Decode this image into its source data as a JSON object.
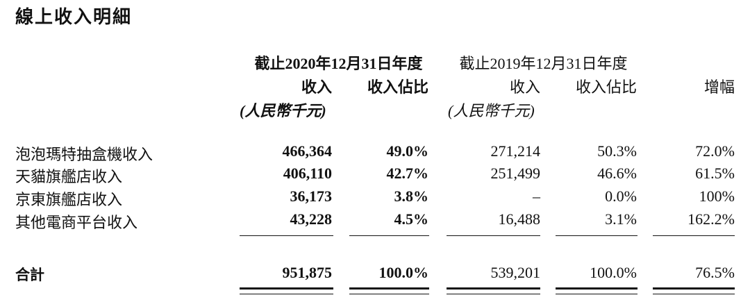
{
  "title": "線上收入明細",
  "periods": {
    "current": "截止2020年12月31日年度",
    "previous": "截止2019年12月31日年度"
  },
  "headers": {
    "revenue": "收入",
    "share": "收入佔比",
    "growth": "增幅",
    "unit": "(人民幣千元)"
  },
  "rows": [
    {
      "label": "泡泡瑪特抽盒機收入",
      "rev2020": "466,364",
      "share2020": "49.0%",
      "rev2019": "271,214",
      "share2019": "50.3%",
      "growth": "72.0%"
    },
    {
      "label": "天貓旗艦店收入",
      "rev2020": "406,110",
      "share2020": "42.7%",
      "rev2019": "251,499",
      "share2019": "46.6%",
      "growth": "61.5%"
    },
    {
      "label": "京東旗艦店收入",
      "rev2020": "36,173",
      "share2020": "3.8%",
      "rev2019": "–",
      "share2019": "0.0%",
      "growth": "100%"
    },
    {
      "label": "其他電商平台收入",
      "rev2020": "43,228",
      "share2020": "4.5%",
      "rev2019": "16,488",
      "share2019": "3.1%",
      "growth": "162.2%"
    }
  ],
  "total": {
    "label": "合計",
    "rev2020": "951,875",
    "share2020": "100.0%",
    "rev2019": "539,201",
    "share2019": "100.0%",
    "growth": "76.5%"
  }
}
